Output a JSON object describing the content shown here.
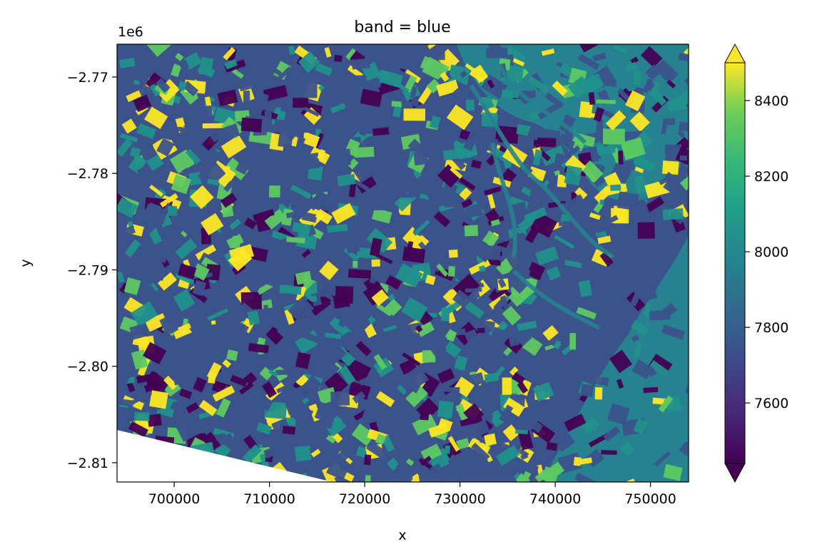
{
  "chart_data": {
    "type": "heatmap",
    "title": "band = blue",
    "xlabel": "x",
    "ylabel": "y",
    "y_offset_label": "1e6",
    "xlim": [
      694000,
      754000
    ],
    "ylim": [
      -2812000,
      -2766600
    ],
    "x_ticks": [
      {
        "value": 700000,
        "label": "700000"
      },
      {
        "value": 710000,
        "label": "710000"
      },
      {
        "value": 720000,
        "label": "720000"
      },
      {
        "value": 730000,
        "label": "730000"
      },
      {
        "value": 740000,
        "label": "740000"
      },
      {
        "value": 750000,
        "label": "750000"
      }
    ],
    "y_ticks": [
      {
        "value": -2770000,
        "label": "−2.77"
      },
      {
        "value": -2780000,
        "label": "−2.78"
      },
      {
        "value": -2790000,
        "label": "−2.79"
      },
      {
        "value": -2800000,
        "label": "−2.80"
      },
      {
        "value": -2810000,
        "label": "−2.81"
      }
    ],
    "colorbar": {
      "colormap": "viridis",
      "range": [
        7440,
        8500
      ],
      "extend": "both",
      "ticks": [
        {
          "value": 7600,
          "label": "7600"
        },
        {
          "value": 7800,
          "label": "7800"
        },
        {
          "value": 8000,
          "label": "8000"
        },
        {
          "value": 8200,
          "label": "8200"
        },
        {
          "value": 8400,
          "label": "8400"
        }
      ]
    },
    "colors": [
      "#440154",
      "#3b528b",
      "#21918c",
      "#5ec962",
      "#fde725"
    ]
  }
}
